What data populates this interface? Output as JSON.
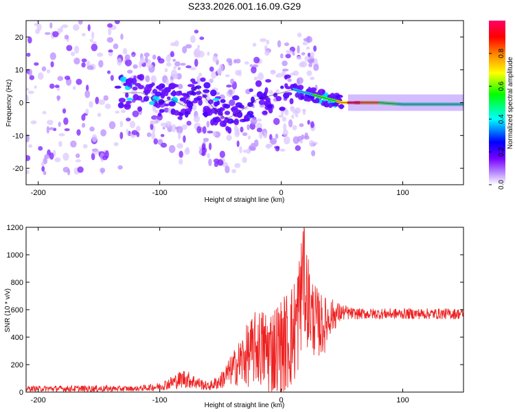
{
  "chart_data": [
    {
      "type": "heatmap",
      "title": "S233.2026.001.16.09.G29",
      "xlabel": "Height of straight line (km)",
      "ylabel": "Frequency (Hz)",
      "xlim": [
        -210,
        150
      ],
      "ylim": [
        -25,
        25
      ],
      "xticks": [
        -200,
        -100,
        0,
        100
      ],
      "yticks": [
        -20,
        -10,
        0,
        10,
        20
      ],
      "xtick_labels": [
        "-200",
        "-100",
        "0",
        "100"
      ],
      "ytick_labels": [
        "-20",
        "-10",
        "0",
        "10",
        "20"
      ],
      "frequency_track": {
        "x": [
          -130,
          -115,
          -100,
          -90,
          -80,
          -70,
          -55,
          -45,
          -35,
          -20,
          -10,
          0,
          10,
          20,
          30,
          40,
          50,
          60,
          80,
          100,
          120,
          150
        ],
        "y": [
          3,
          3,
          0,
          1,
          -1,
          5,
          -2,
          -5,
          -3,
          1,
          2,
          3,
          4,
          3,
          2,
          1,
          0,
          0,
          0,
          -0.5,
          -0.5,
          -0.5
        ]
      },
      "colorbar": {
        "label": "Normalized spectral amplitude",
        "range": [
          0,
          1
        ],
        "ticks": [
          0.0,
          0.2,
          0.4,
          0.6,
          0.8
        ],
        "tick_labels": [
          "0.0",
          "0.2",
          "0.4",
          "0.6",
          "0.8"
        ],
        "colors": [
          "#ffffff",
          "#7700ff",
          "#0000ff",
          "#00ffff",
          "#00ff00",
          "#ffff00",
          "#ff8000",
          "#ff0000",
          "#ff0066"
        ]
      }
    },
    {
      "type": "line",
      "xlabel": "Height of straight line (km)",
      "ylabel": "SNR (10 * v/v)",
      "xlim": [
        -210,
        150
      ],
      "ylim": [
        0,
        1200
      ],
      "xticks": [
        -200,
        -100,
        0,
        100
      ],
      "yticks": [
        0,
        200,
        400,
        600,
        800,
        1000,
        1200
      ],
      "xtick_labels": [
        "-200",
        "-100",
        "0",
        "100"
      ],
      "ytick_labels": [
        "0",
        "200",
        "400",
        "600",
        "800",
        "1000",
        "1200"
      ],
      "color": "#ee2222",
      "envelope": {
        "x": [
          -210,
          -150,
          -120,
          -100,
          -90,
          -80,
          -70,
          -60,
          -50,
          -40,
          -30,
          -20,
          -10,
          0,
          10,
          15,
          18,
          20,
          25,
          30,
          35,
          40,
          50,
          60,
          100,
          150
        ],
        "base": [
          25,
          25,
          25,
          40,
          70,
          100,
          70,
          40,
          80,
          170,
          250,
          330,
          300,
          330,
          420,
          600,
          850,
          750,
          560,
          500,
          480,
          550,
          580,
          570,
          570,
          570
        ],
        "spread": [
          20,
          25,
          18,
          30,
          50,
          70,
          50,
          30,
          60,
          120,
          220,
          280,
          330,
          360,
          400,
          450,
          380,
          400,
          300,
          250,
          220,
          140,
          60,
          40,
          40,
          40
        ]
      }
    }
  ]
}
